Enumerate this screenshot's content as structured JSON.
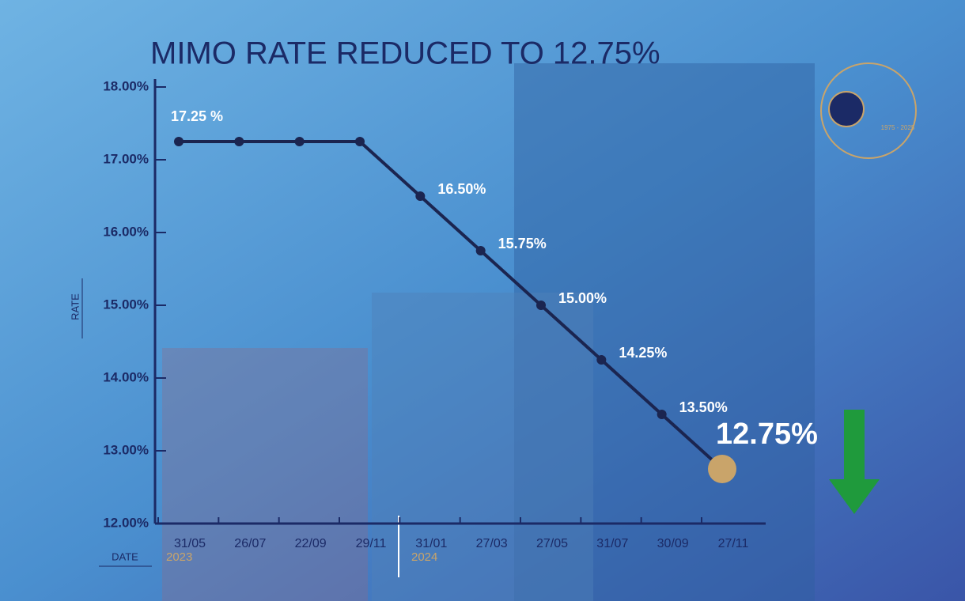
{
  "chart_data": {
    "type": "line",
    "title": "MIMO RATE REDUCED TO 12.75%",
    "y_label": "RATE",
    "x_label": "DATE",
    "year_labels": [
      "2023",
      "2024"
    ],
    "logo_text": "1975 - 2025",
    "categories": [
      "31/05",
      "26/07",
      "22/09",
      "29/11",
      "31/01",
      "27/03",
      "27/05",
      "31/07",
      "30/09",
      "27/11"
    ],
    "series": [
      {
        "name": "MIMO rate",
        "color": "#1b2550",
        "values": [
          17.25,
          17.25,
          17.25,
          17.25,
          16.5,
          15.75,
          15.0,
          14.25,
          13.5,
          12.75
        ],
        "value_labels": [
          "17.25 %",
          null,
          null,
          null,
          "16.50%",
          "15.75%",
          "15.00%",
          "14.25%",
          "13.50%",
          "12.75%"
        ]
      }
    ],
    "highlight_color": "#c9a46a",
    "ylim": [
      12,
      18
    ],
    "yticks": [
      {
        "value": 12,
        "label": "12.00%"
      },
      {
        "value": 13,
        "label": "13.00%"
      },
      {
        "value": 14,
        "label": "14.00%"
      },
      {
        "value": 15,
        "label": "15.00%"
      },
      {
        "value": 16,
        "label": "16.00%"
      },
      {
        "value": 17,
        "label": "17.00%"
      },
      {
        "value": 18,
        "label": "18.00%"
      }
    ]
  }
}
